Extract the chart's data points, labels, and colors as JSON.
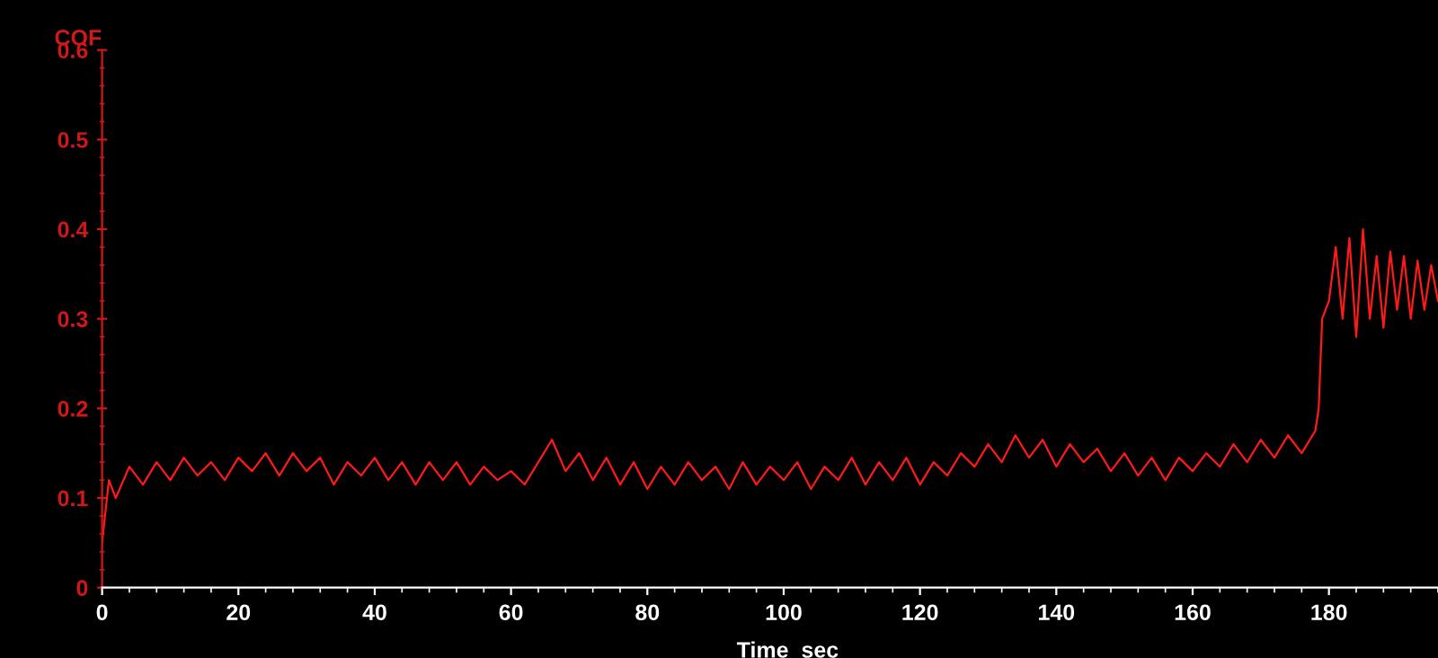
{
  "chart_data": {
    "type": "line",
    "xlabel": "Time  sec",
    "ylabel": "COF",
    "xlim": [
      0,
      196
    ],
    "xticks": [
      0,
      20,
      40,
      60,
      80,
      100,
      120,
      140,
      160,
      180
    ],
    "ylim": [
      0,
      0.6
    ],
    "yticks": [
      0,
      0.1,
      0.2,
      0.3,
      0.4,
      0.5,
      0.6
    ],
    "grid": false,
    "marker": "none",
    "line_style": "solid",
    "series": [
      {
        "color": "#ff1a1a",
        "x": [
          0,
          1,
          2,
          4,
          6,
          8,
          10,
          12,
          14,
          16,
          18,
          20,
          22,
          24,
          26,
          28,
          30,
          32,
          34,
          36,
          38,
          40,
          42,
          44,
          46,
          48,
          50,
          52,
          54,
          56,
          58,
          60,
          62,
          64,
          66,
          68,
          70,
          72,
          74,
          76,
          78,
          80,
          82,
          84,
          86,
          88,
          90,
          92,
          94,
          96,
          98,
          100,
          102,
          104,
          106,
          108,
          110,
          112,
          114,
          116,
          118,
          120,
          122,
          124,
          126,
          128,
          130,
          132,
          134,
          136,
          138,
          140,
          142,
          144,
          146,
          148,
          150,
          152,
          154,
          156,
          158,
          160,
          162,
          164,
          166,
          168,
          170,
          172,
          174,
          176,
          178,
          178.5,
          179,
          180,
          181,
          182,
          183,
          184,
          185,
          186,
          187,
          188,
          189,
          190,
          191,
          192,
          193,
          194,
          195,
          196
        ],
        "values": [
          0.05,
          0.12,
          0.1,
          0.135,
          0.115,
          0.14,
          0.12,
          0.145,
          0.125,
          0.14,
          0.12,
          0.145,
          0.13,
          0.15,
          0.125,
          0.15,
          0.13,
          0.145,
          0.115,
          0.14,
          0.125,
          0.145,
          0.12,
          0.14,
          0.115,
          0.14,
          0.12,
          0.14,
          0.115,
          0.135,
          0.12,
          0.13,
          0.115,
          0.14,
          0.165,
          0.13,
          0.15,
          0.12,
          0.145,
          0.115,
          0.14,
          0.11,
          0.135,
          0.115,
          0.14,
          0.12,
          0.135,
          0.11,
          0.14,
          0.115,
          0.135,
          0.12,
          0.14,
          0.11,
          0.135,
          0.12,
          0.145,
          0.115,
          0.14,
          0.12,
          0.145,
          0.115,
          0.14,
          0.125,
          0.15,
          0.135,
          0.16,
          0.14,
          0.17,
          0.145,
          0.165,
          0.135,
          0.16,
          0.14,
          0.155,
          0.13,
          0.15,
          0.125,
          0.145,
          0.12,
          0.145,
          0.13,
          0.15,
          0.135,
          0.16,
          0.14,
          0.165,
          0.145,
          0.17,
          0.15,
          0.175,
          0.2,
          0.3,
          0.32,
          0.38,
          0.3,
          0.39,
          0.28,
          0.4,
          0.3,
          0.37,
          0.29,
          0.375,
          0.31,
          0.37,
          0.3,
          0.365,
          0.31,
          0.36,
          0.32
        ]
      }
    ]
  }
}
